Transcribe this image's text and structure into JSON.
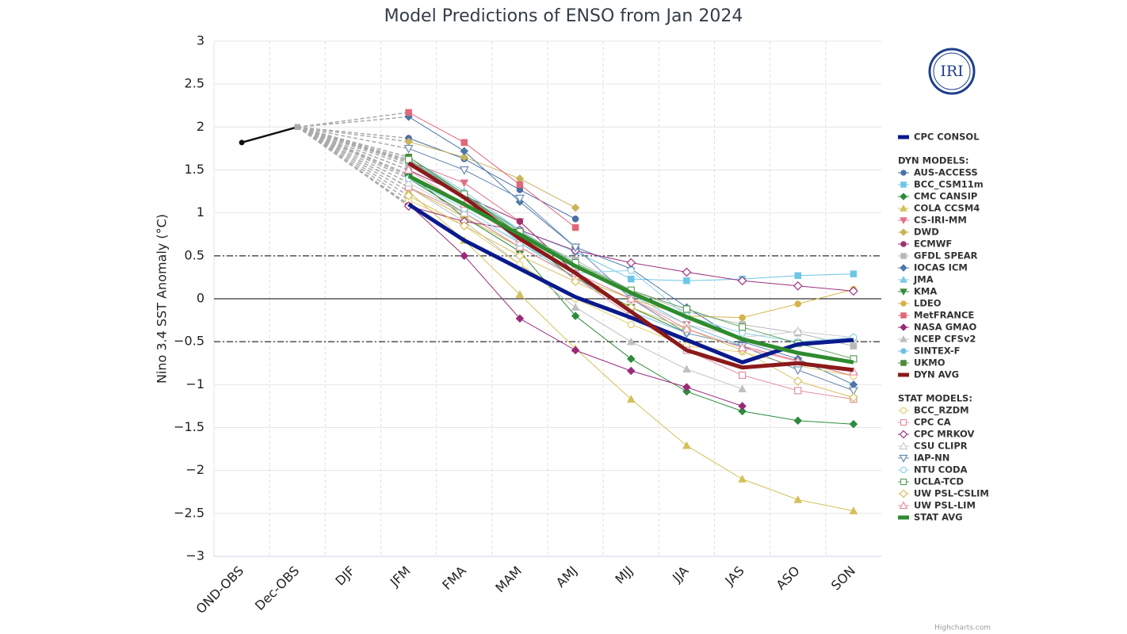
{
  "logo": "IRI",
  "credit": "Highcharts.com",
  "chart_data": {
    "type": "line",
    "title": "Model Predictions of ENSO from Jan 2024",
    "y_label": "Nino 3.4 SST Anomaly (°C)",
    "categories": [
      "OND-OBS",
      "Dec-OBS",
      "DJF",
      "JFM",
      "FMA",
      "MAM",
      "AMJ",
      "MJJ",
      "JJA",
      "JAS",
      "ASO",
      "SON"
    ],
    "ylim": [
      -3,
      3
    ],
    "yticks": [
      {
        "value": -3,
        "label": "−3"
      },
      {
        "value": -2.5,
        "label": "−2.5"
      },
      {
        "value": -2,
        "label": "−2"
      },
      {
        "value": -1.5,
        "label": "−1.5"
      },
      {
        "value": -1,
        "label": "−1"
      },
      {
        "value": -0.5,
        "label": "−0.5"
      },
      0,
      0.5,
      1,
      1.5,
      2,
      2.5,
      3
    ],
    "grid": true,
    "plot_lines": [
      {
        "value": 0.5,
        "style": "dashdot"
      },
      {
        "value": 0,
        "style": "solid"
      },
      {
        "value": -0.5,
        "style": "dashdot"
      }
    ],
    "observed": {
      "color": "#111111",
      "values": [
        1.82,
        2.0,
        null,
        null,
        null,
        null,
        null,
        null,
        null,
        null,
        null,
        null
      ]
    },
    "groups": [
      {
        "series": [
          {
            "name": "CPC CONSOL",
            "color": "#0a1a8c",
            "line_width": 5,
            "values": [
              null,
              null,
              null,
              1.1,
              0.68,
              0.35,
              0.02,
              -0.22,
              -0.48,
              -0.74,
              -0.53,
              -0.48
            ]
          }
        ]
      },
      {
        "title": "DYN MODELS:",
        "series": [
          {
            "name": "AUS-ACCESS",
            "color": "#4a6fa5",
            "marker": "circle",
            "values": [
              null,
              null,
              null,
              1.87,
              1.63,
              1.27,
              0.93,
              null,
              null,
              null,
              null,
              null
            ]
          },
          {
            "name": "BCC_CSM11m",
            "color": "#6ec6e6",
            "marker": "square",
            "values": [
              null,
              null,
              null,
              1.62,
              1.2,
              0.8,
              0.55,
              0.23,
              0.21,
              0.23,
              0.27,
              0.29
            ]
          },
          {
            "name": "CMC CANSIP",
            "color": "#2e8b3e",
            "marker": "diamond",
            "values": [
              null,
              null,
              null,
              1.45,
              0.95,
              0.55,
              -0.2,
              -0.7,
              -1.08,
              -1.31,
              -1.42,
              -1.46
            ]
          },
          {
            "name": "COLA CCSM4",
            "color": "#d4c05a",
            "marker": "triangle",
            "values": [
              null,
              null,
              null,
              1.25,
              0.68,
              0.05,
              -0.58,
              -1.17,
              -1.71,
              -2.1,
              -2.34,
              -2.47
            ]
          },
          {
            "name": "CS-IRI-MM",
            "color": "#e0708a",
            "marker": "triangle-down",
            "values": [
              null,
              null,
              null,
              1.6,
              1.35,
              0.9,
              0.3,
              0.0,
              -0.3,
              -0.55,
              -0.72,
              -0.9
            ]
          },
          {
            "name": "DWD",
            "color": "#c8b45a",
            "marker": "diamond",
            "values": [
              null,
              null,
              null,
              1.83,
              1.65,
              1.4,
              1.06,
              null,
              null,
              null,
              null,
              null
            ]
          },
          {
            "name": "ECMWF",
            "color": "#a0306e",
            "marker": "circle",
            "values": [
              null,
              null,
              null,
              1.5,
              1.2,
              0.9,
              0.3,
              null,
              null,
              null,
              null,
              null
            ]
          },
          {
            "name": "GFDL SPEAR",
            "color": "#b8b8b8",
            "marker": "square",
            "values": [
              null,
              null,
              null,
              1.55,
              1.2,
              0.75,
              0.45,
              0.1,
              -0.15,
              -0.3,
              -0.4,
              -0.55
            ]
          },
          {
            "name": "IOCAS ICM",
            "color": "#4c78a8",
            "marker": "diamond",
            "values": [
              null,
              null,
              null,
              2.12,
              1.72,
              1.13,
              0.6,
              0.35,
              -0.1,
              -0.5,
              -0.7,
              -1.0
            ]
          },
          {
            "name": "JMA",
            "color": "#7ec8e3",
            "marker": "triangle",
            "values": [
              null,
              null,
              null,
              1.65,
              1.25,
              0.8,
              0.4,
              0.05,
              -0.3,
              -0.55,
              null,
              null
            ]
          },
          {
            "name": "KMA",
            "color": "#3a8a3a",
            "marker": "triangle-down",
            "values": [
              null,
              null,
              null,
              1.4,
              1.0,
              0.6,
              0.25,
              -0.1,
              -0.4,
              null,
              null,
              null
            ]
          },
          {
            "name": "LDEO",
            "color": "#d4b44a",
            "marker": "circle",
            "values": [
              null,
              null,
              null,
              1.3,
              0.95,
              0.6,
              0.25,
              0.0,
              -0.2,
              -0.22,
              -0.06,
              0.11
            ]
          },
          {
            "name": "MetFRANCE",
            "color": "#e06878",
            "marker": "square",
            "values": [
              null,
              null,
              null,
              2.17,
              1.82,
              1.33,
              0.83,
              null,
              null,
              null,
              null,
              null
            ]
          },
          {
            "name": "NASA GMAO",
            "color": "#9a2a7a",
            "marker": "diamond",
            "values": [
              null,
              null,
              null,
              1.1,
              0.5,
              -0.23,
              -0.6,
              -0.84,
              -1.03,
              -1.25,
              null,
              null
            ]
          },
          {
            "name": "NCEP CFSv2",
            "color": "#c0c0c0",
            "marker": "triangle",
            "values": [
              null,
              null,
              null,
              1.3,
              0.9,
              0.4,
              -0.1,
              -0.5,
              -0.82,
              -1.05,
              null,
              null
            ]
          },
          {
            "name": "SINTEX-F",
            "color": "#70c0e8",
            "marker": "circle",
            "values": [
              null,
              null,
              null,
              1.6,
              1.2,
              0.65,
              0.25,
              -0.15,
              -0.4,
              null,
              null,
              null
            ]
          },
          {
            "name": "UKMO",
            "color": "#4a8a3a",
            "marker": "square",
            "values": [
              null,
              null,
              null,
              1.65,
              1.22,
              0.75,
              0.22,
              null,
              null,
              null,
              null,
              null
            ]
          },
          {
            "name": "DYN AVG",
            "color": "#8b1a1a",
            "line_width": 5,
            "values": [
              null,
              null,
              null,
              1.58,
              1.18,
              0.7,
              0.3,
              -0.15,
              -0.6,
              -0.8,
              -0.75,
              -0.83
            ]
          }
        ]
      },
      {
        "title": "STAT MODELS:",
        "series": [
          {
            "name": "BCC_RZDM",
            "color": "#e0d070",
            "marker": "circle",
            "hollow": true,
            "values": [
              null,
              null,
              null,
              1.15,
              0.85,
              0.4,
              0.0,
              -0.3,
              -0.55,
              -0.62,
              -0.78,
              -0.9
            ]
          },
          {
            "name": "CPC CA",
            "color": "#e090a0",
            "marker": "square",
            "hollow": true,
            "values": [
              null,
              null,
              null,
              1.3,
              1.0,
              0.6,
              0.25,
              -0.2,
              -0.6,
              -0.89,
              -1.07,
              -1.17
            ]
          },
          {
            "name": "CPC MRKOV",
            "color": "#a03080",
            "marker": "diamond",
            "hollow": true,
            "values": [
              null,
              null,
              null,
              1.08,
              0.9,
              0.8,
              0.56,
              0.42,
              0.31,
              0.21,
              0.15,
              0.09
            ]
          },
          {
            "name": "CSU CLIPR",
            "color": "#cccccc",
            "marker": "triangle",
            "hollow": true,
            "values": [
              null,
              null,
              null,
              1.35,
              1.0,
              0.65,
              0.3,
              0.0,
              -0.3,
              -0.45,
              -0.38,
              -0.45
            ]
          },
          {
            "name": "IAP-NN",
            "color": "#6a8ab0",
            "marker": "triangle-down",
            "hollow": true,
            "values": [
              null,
              null,
              null,
              1.75,
              1.5,
              1.17,
              0.6,
              0.0,
              -0.4,
              -0.55,
              -0.83,
              -1.07
            ]
          },
          {
            "name": "NTU CODA",
            "color": "#90d0e8",
            "marker": "circle",
            "hollow": true,
            "values": [
              null,
              null,
              null,
              1.4,
              1.05,
              0.65,
              0.3,
              0.33,
              -0.2,
              -0.4,
              -0.5,
              -0.45
            ]
          },
          {
            "name": "UCLA-TCD",
            "color": "#60a060",
            "marker": "square",
            "hollow": true,
            "values": [
              null,
              null,
              null,
              1.62,
              1.22,
              0.78,
              0.42,
              0.1,
              -0.12,
              -0.33,
              -0.52,
              -0.7
            ]
          },
          {
            "name": "UW PSL-CSLIM",
            "color": "#d8c060",
            "marker": "diamond",
            "hollow": true,
            "values": [
              null,
              null,
              null,
              1.2,
              0.85,
              0.5,
              0.2,
              -0.1,
              -0.35,
              -0.6,
              -0.96,
              -1.15
            ]
          },
          {
            "name": "UW PSL-LIM",
            "color": "#e890a0",
            "marker": "triangle",
            "hollow": true,
            "values": [
              null,
              null,
              null,
              1.5,
              1.1,
              0.7,
              0.3,
              0.0,
              -0.35,
              -0.57,
              -0.73,
              -0.85
            ]
          },
          {
            "name": "STAT AVG",
            "color": "#2e8b2e",
            "line_width": 5,
            "values": [
              null,
              null,
              null,
              1.43,
              1.1,
              0.75,
              0.38,
              0.07,
              -0.21,
              -0.47,
              -0.63,
              -0.74
            ]
          }
        ]
      }
    ]
  }
}
